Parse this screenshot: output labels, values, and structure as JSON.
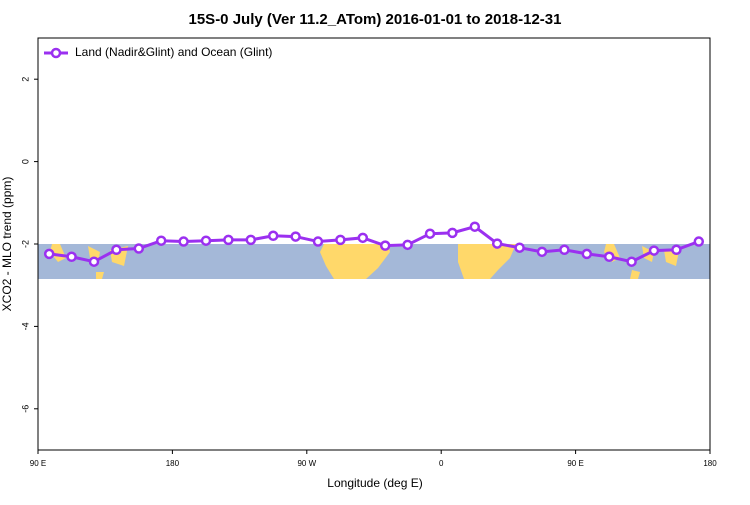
{
  "chart_data": {
    "type": "line",
    "title": "15S-0 July (Ver 11.2_ATom)   2016-01-01 to 2018-12-31",
    "xlabel": "Longitude (deg E)",
    "ylabel": "XCO2 - MLO trend (ppm)",
    "x": [
      97.5,
      112.5,
      127.5,
      142.5,
      157.5,
      172.5,
      187.5,
      202.5,
      217.5,
      232.5,
      247.5,
      262.5,
      277.5,
      292.5,
      307.5,
      322.5,
      337.5,
      352.5,
      367.5,
      382.5,
      397.5,
      412.5,
      427.5,
      442.5,
      457.5,
      472.5,
      487.5,
      502.5,
      517.5,
      532.5
    ],
    "series": [
      {
        "name": "Land (Nadir&Glint) and Ocean (Glint)",
        "color": "#9b30f0",
        "values": [
          -2.24,
          -2.31,
          -2.43,
          -2.14,
          -2.11,
          -1.92,
          -1.94,
          -1.92,
          -1.9,
          -1.9,
          -1.8,
          -1.82,
          -1.94,
          -1.9,
          -1.85,
          -2.04,
          -2.02,
          -1.75,
          -1.73,
          -1.58,
          -1.99,
          -2.09,
          -2.19,
          -2.14,
          -2.24,
          -2.31,
          -2.43,
          -2.16,
          -2.14,
          -1.94
        ]
      }
    ],
    "xlim": [
      90,
      540
    ],
    "xticks": [
      {
        "value": 90,
        "label": "90 E"
      },
      180,
      {
        "value": 270,
        "label": "90 W"
      },
      {
        "value": 360,
        "label": "0"
      },
      {
        "value": 450,
        "label": "90 E"
      },
      {
        "value": 540,
        "label": "180"
      }
    ],
    "ylim": [
      -7,
      3
    ],
    "yticks": [
      2,
      0,
      -2,
      -4,
      -6
    ],
    "legend": "top-left"
  }
}
